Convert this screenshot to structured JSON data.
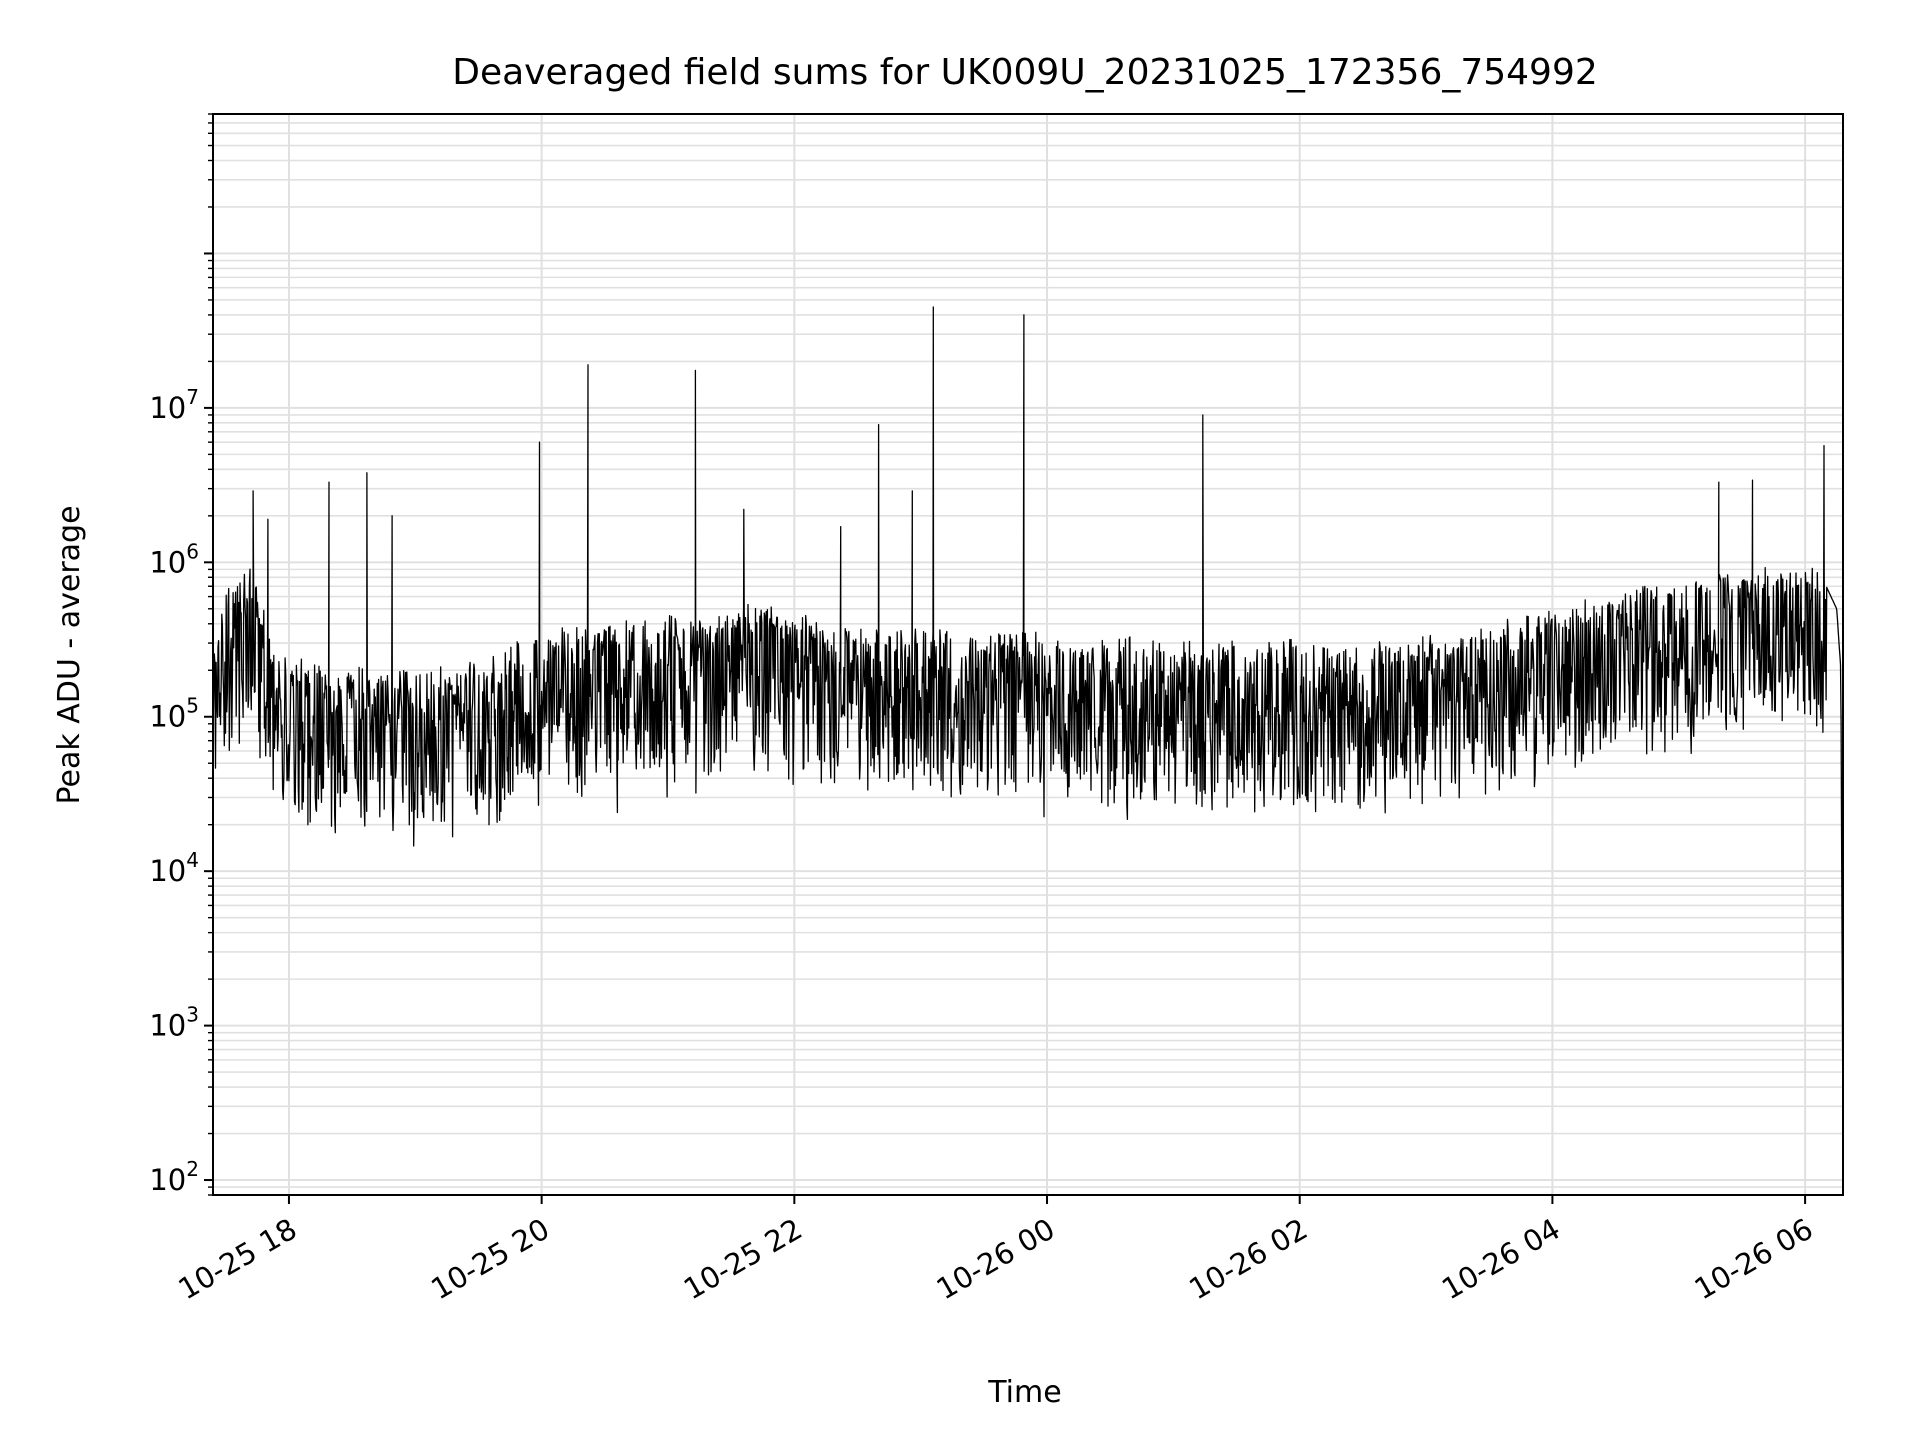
{
  "chart_data": {
    "type": "line",
    "title": "Deaveraged field sums for UK009U_20231025_172356_754992",
    "xlabel": "Time",
    "ylabel": "Peak ADU - average",
    "yscale": "log",
    "ylim": [
      80,
      800000000
    ],
    "xlim": [
      "2023-10-25T17:23:56",
      "2023-10-26T06:18:00"
    ],
    "grid": true,
    "line_color": "#000000",
    "grid_color": "#e0e0e0",
    "x_ticks": [
      {
        "value": "2023-10-25T18:00:00",
        "label": "10-25 18"
      },
      {
        "value": "2023-10-25T20:00:00",
        "label": "10-25 20"
      },
      {
        "value": "2023-10-25T22:00:00",
        "label": "10-25 22"
      },
      {
        "value": "2023-10-26T00:00:00",
        "label": "10-26 00"
      },
      {
        "value": "2023-10-26T02:00:00",
        "label": "10-26 02"
      },
      {
        "value": "2023-10-26T04:00:00",
        "label": "10-26 04"
      },
      {
        "value": "2023-10-26T06:00:00",
        "label": "10-26 06"
      }
    ],
    "y_ticks": [
      {
        "value": 100,
        "base": "10",
        "exp": "2"
      },
      {
        "value": 1000,
        "base": "10",
        "exp": "3"
      },
      {
        "value": 10000,
        "base": "10",
        "exp": "4"
      },
      {
        "value": 100000,
        "base": "10",
        "exp": "5"
      },
      {
        "value": 1000000,
        "base": "10",
        "exp": "6"
      },
      {
        "value": 10000000,
        "base": "10",
        "exp": "7"
      }
    ],
    "series": [
      {
        "x": [
          "2023-10-25T17:24:00",
          "2023-10-25T17:30:00",
          "2023-10-25T17:36:00",
          "2023-10-25T17:40:00",
          "2023-10-25T17:42:00",
          "2023-10-25T17:45:00",
          "2023-10-25T17:50:00",
          "2023-10-25T17:53:00",
          "2023-10-25T17:57:00",
          "2023-10-25T18:00:00",
          "2023-10-25T18:09:00",
          "2023-10-25T18:15:00",
          "2023-10-25T18:20:00",
          "2023-10-25T18:30:00",
          "2023-10-25T18:38:00",
          "2023-10-25T18:48:00",
          "2023-10-25T18:58:00",
          "2023-10-25T19:10:00",
          "2023-10-25T19:26:00",
          "2023-10-25T19:35:00",
          "2023-10-25T19:46:00",
          "2023-10-25T19:58:00",
          "2023-10-25T20:15:00",
          "2023-10-25T20:22:00",
          "2023-10-25T20:30:00",
          "2023-10-25T20:45:00",
          "2023-10-25T21:00:00",
          "2023-10-25T21:12:00",
          "2023-10-25T21:21:00",
          "2023-10-25T21:30:00",
          "2023-10-25T21:35:00",
          "2023-10-25T21:45:00",
          "2023-10-25T22:00:00",
          "2023-10-25T22:15:00",
          "2023-10-25T22:30:00",
          "2023-10-25T22:40:00",
          "2023-10-25T22:50:00",
          "2023-10-25T23:00:00",
          "2023-10-25T23:08:00",
          "2023-10-25T23:20:00",
          "2023-10-25T23:35:00",
          "2023-10-25T23:48:00",
          "2023-10-25T23:54:00",
          "2023-10-26T00:00:00",
          "2023-10-26T00:20:00",
          "2023-10-26T00:40:00",
          "2023-10-26T01:00:00",
          "2023-10-26T01:13:00",
          "2023-10-26T01:30:00",
          "2023-10-26T02:00:00",
          "2023-10-26T02:30:00",
          "2023-10-26T03:00:00",
          "2023-10-26T03:30:00",
          "2023-10-26T04:00:00",
          "2023-10-26T04:30:00",
          "2023-10-26T05:00:00",
          "2023-10-26T05:30:00",
          "2023-10-26T05:50:00",
          "2023-10-26T06:05:00",
          "2023-10-26T06:10:00",
          "2023-10-26T06:15:00",
          "2023-10-26T06:17:00",
          "2023-10-26T06:18:00"
        ],
        "baseline": [
          350000,
          500000,
          620000,
          750000,
          700000,
          550000,
          350000,
          250000,
          220000,
          200000,
          180000,
          170000,
          160000,
          160000,
          160000,
          160000,
          160000,
          160000,
          180000,
          200000,
          240000,
          280000,
          300000,
          320000,
          340000,
          350000,
          360000,
          350000,
          360000,
          380000,
          450000,
          420000,
          360000,
          340000,
          320000,
          310000,
          300000,
          300000,
          300000,
          300000,
          300000,
          300000,
          300000,
          250000,
          250000,
          250000,
          240000,
          240000,
          240000,
          250000,
          250000,
          260000,
          300000,
          400000,
          500000,
          600000,
          700000,
          750000,
          750000,
          700000,
          500000,
          200000,
          150
        ],
        "spikes": [
          {
            "x": "2023-10-25T17:43:00",
            "y": 2900000
          },
          {
            "x": "2023-10-25T17:50:00",
            "y": 1900000
          },
          {
            "x": "2023-10-25T18:19:00",
            "y": 3300000
          },
          {
            "x": "2023-10-25T18:37:00",
            "y": 3800000
          },
          {
            "x": "2023-10-25T18:49:00",
            "y": 2000000
          },
          {
            "x": "2023-10-25T19:59:00",
            "y": 6000000
          },
          {
            "x": "2023-10-25T20:22:00",
            "y": 19000000
          },
          {
            "x": "2023-10-25T21:13:00",
            "y": 17500000
          },
          {
            "x": "2023-10-25T21:36:00",
            "y": 2200000
          },
          {
            "x": "2023-10-25T22:22:00",
            "y": 1700000
          },
          {
            "x": "2023-10-25T22:40:00",
            "y": 7800000
          },
          {
            "x": "2023-10-25T22:56:00",
            "y": 2900000
          },
          {
            "x": "2023-10-25T23:06:00",
            "y": 45000000
          },
          {
            "x": "2023-10-25T23:49:00",
            "y": 40000000
          },
          {
            "x": "2023-10-26T01:14:00",
            "y": 9000000
          },
          {
            "x": "2023-10-26T05:19:00",
            "y": 3300000
          },
          {
            "x": "2023-10-26T05:35:00",
            "y": 3400000
          },
          {
            "x": "2023-10-26T06:09:00",
            "y": 5700000
          }
        ],
        "dips": [
          {
            "x": "2023-10-25T18:09:00",
            "y": 20000
          },
          {
            "x": "2023-10-25T19:35:00",
            "y": 20000
          },
          {
            "x": "2023-10-25T20:36:00",
            "y": 24000
          },
          {
            "x": "2023-10-26T00:30:00",
            "y": 34000
          },
          {
            "x": "2023-10-26T02:20:00",
            "y": 28000
          },
          {
            "x": "2023-10-26T06:18:00",
            "y": 150
          }
        ]
      }
    ]
  }
}
